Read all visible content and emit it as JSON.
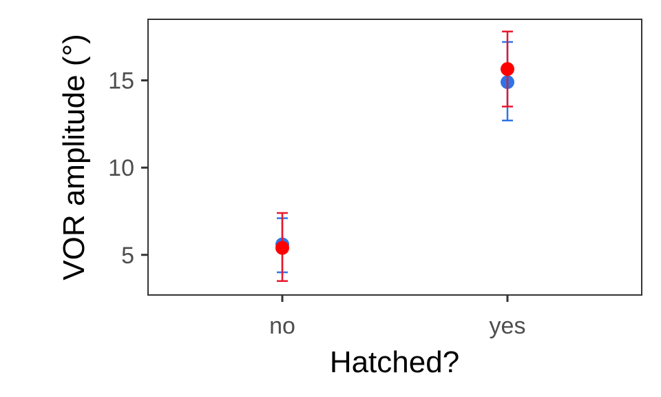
{
  "chart_data": {
    "type": "scatter",
    "title": "",
    "xlabel": "Hatched?",
    "ylabel": "VOR amplitude (°)",
    "categories": [
      "no",
      "yes"
    ],
    "ylim": [
      2.7,
      18.5
    ],
    "yticks": [
      5,
      10,
      15
    ],
    "grid": false,
    "legend": "none",
    "series": [
      {
        "color": "#2f74e6",
        "values": [
          5.6,
          14.9
        ],
        "lower": [
          4.0,
          12.7
        ],
        "upper": [
          7.1,
          17.2
        ]
      },
      {
        "color": "#ff0000",
        "errorColor": "#e8172b",
        "values": [
          5.4,
          15.65
        ],
        "lower": [
          3.5,
          13.5
        ],
        "upper": [
          7.4,
          17.8
        ]
      }
    ]
  }
}
